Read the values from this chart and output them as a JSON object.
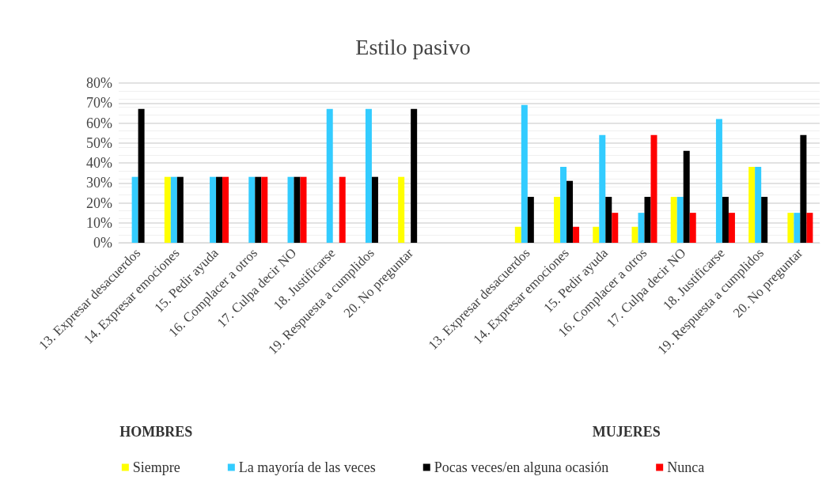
{
  "chart_data": {
    "type": "bar",
    "title": "Estilo pasivo",
    "categories": [
      "13. Expresar desacuerdos",
      "14. Expresar emociones",
      "15. Pedir ayuda",
      "16. Complacer a otros",
      "17. Culpa decir NO",
      "18. Justificarse",
      "19. Respuesta a cumplidos",
      "20. No preguntar",
      null,
      null,
      "13. Expresar desacuerdos",
      "14. Expresar emociones",
      "15. Pedir ayuda",
      "16. Complacer a otros",
      "17. Culpa decir NO",
      "18. Justificarse",
      "19. Respuesta a cumplidos",
      "20. No preguntar"
    ],
    "series": [
      {
        "name": "Siempre",
        "color": "#ffff00",
        "values": [
          0,
          33,
          0,
          0,
          0,
          0,
          0,
          33,
          null,
          null,
          8,
          23,
          8,
          8,
          23,
          0,
          38,
          15
        ]
      },
      {
        "name": "La mayoría de las veces",
        "color": "#33ccff",
        "values": [
          33,
          33,
          33,
          33,
          33,
          67,
          67,
          0,
          null,
          null,
          69,
          38,
          54,
          15,
          23,
          62,
          38,
          15
        ]
      },
      {
        "name": "Pocas veces/en alguna ocasión",
        "color": "#000000",
        "values": [
          67,
          33,
          33,
          33,
          33,
          0,
          33,
          67,
          null,
          null,
          23,
          31,
          23,
          23,
          46,
          23,
          23,
          54
        ]
      },
      {
        "name": "Nunca",
        "color": "#ff0000",
        "values": [
          0,
          0,
          33,
          33,
          33,
          33,
          0,
          0,
          null,
          null,
          0,
          8,
          15,
          54,
          15,
          15,
          0,
          15
        ]
      }
    ],
    "ylim": [
      0,
      80
    ],
    "yticks": [
      {
        "value": 0,
        "label": "0%"
      },
      {
        "value": 10,
        "label": "10%"
      },
      {
        "value": 20,
        "label": "20%"
      },
      {
        "value": 30,
        "label": "30%"
      },
      {
        "value": 40,
        "label": "40%"
      },
      {
        "value": 50,
        "label": "50%"
      },
      {
        "value": 60,
        "label": "60%"
      },
      {
        "value": 70,
        "label": "70%"
      },
      {
        "value": 80,
        "label": "80%"
      }
    ],
    "grid": "y",
    "legend": "bottom",
    "annotations": [
      "HOMBRES",
      "MUJERES"
    ]
  }
}
